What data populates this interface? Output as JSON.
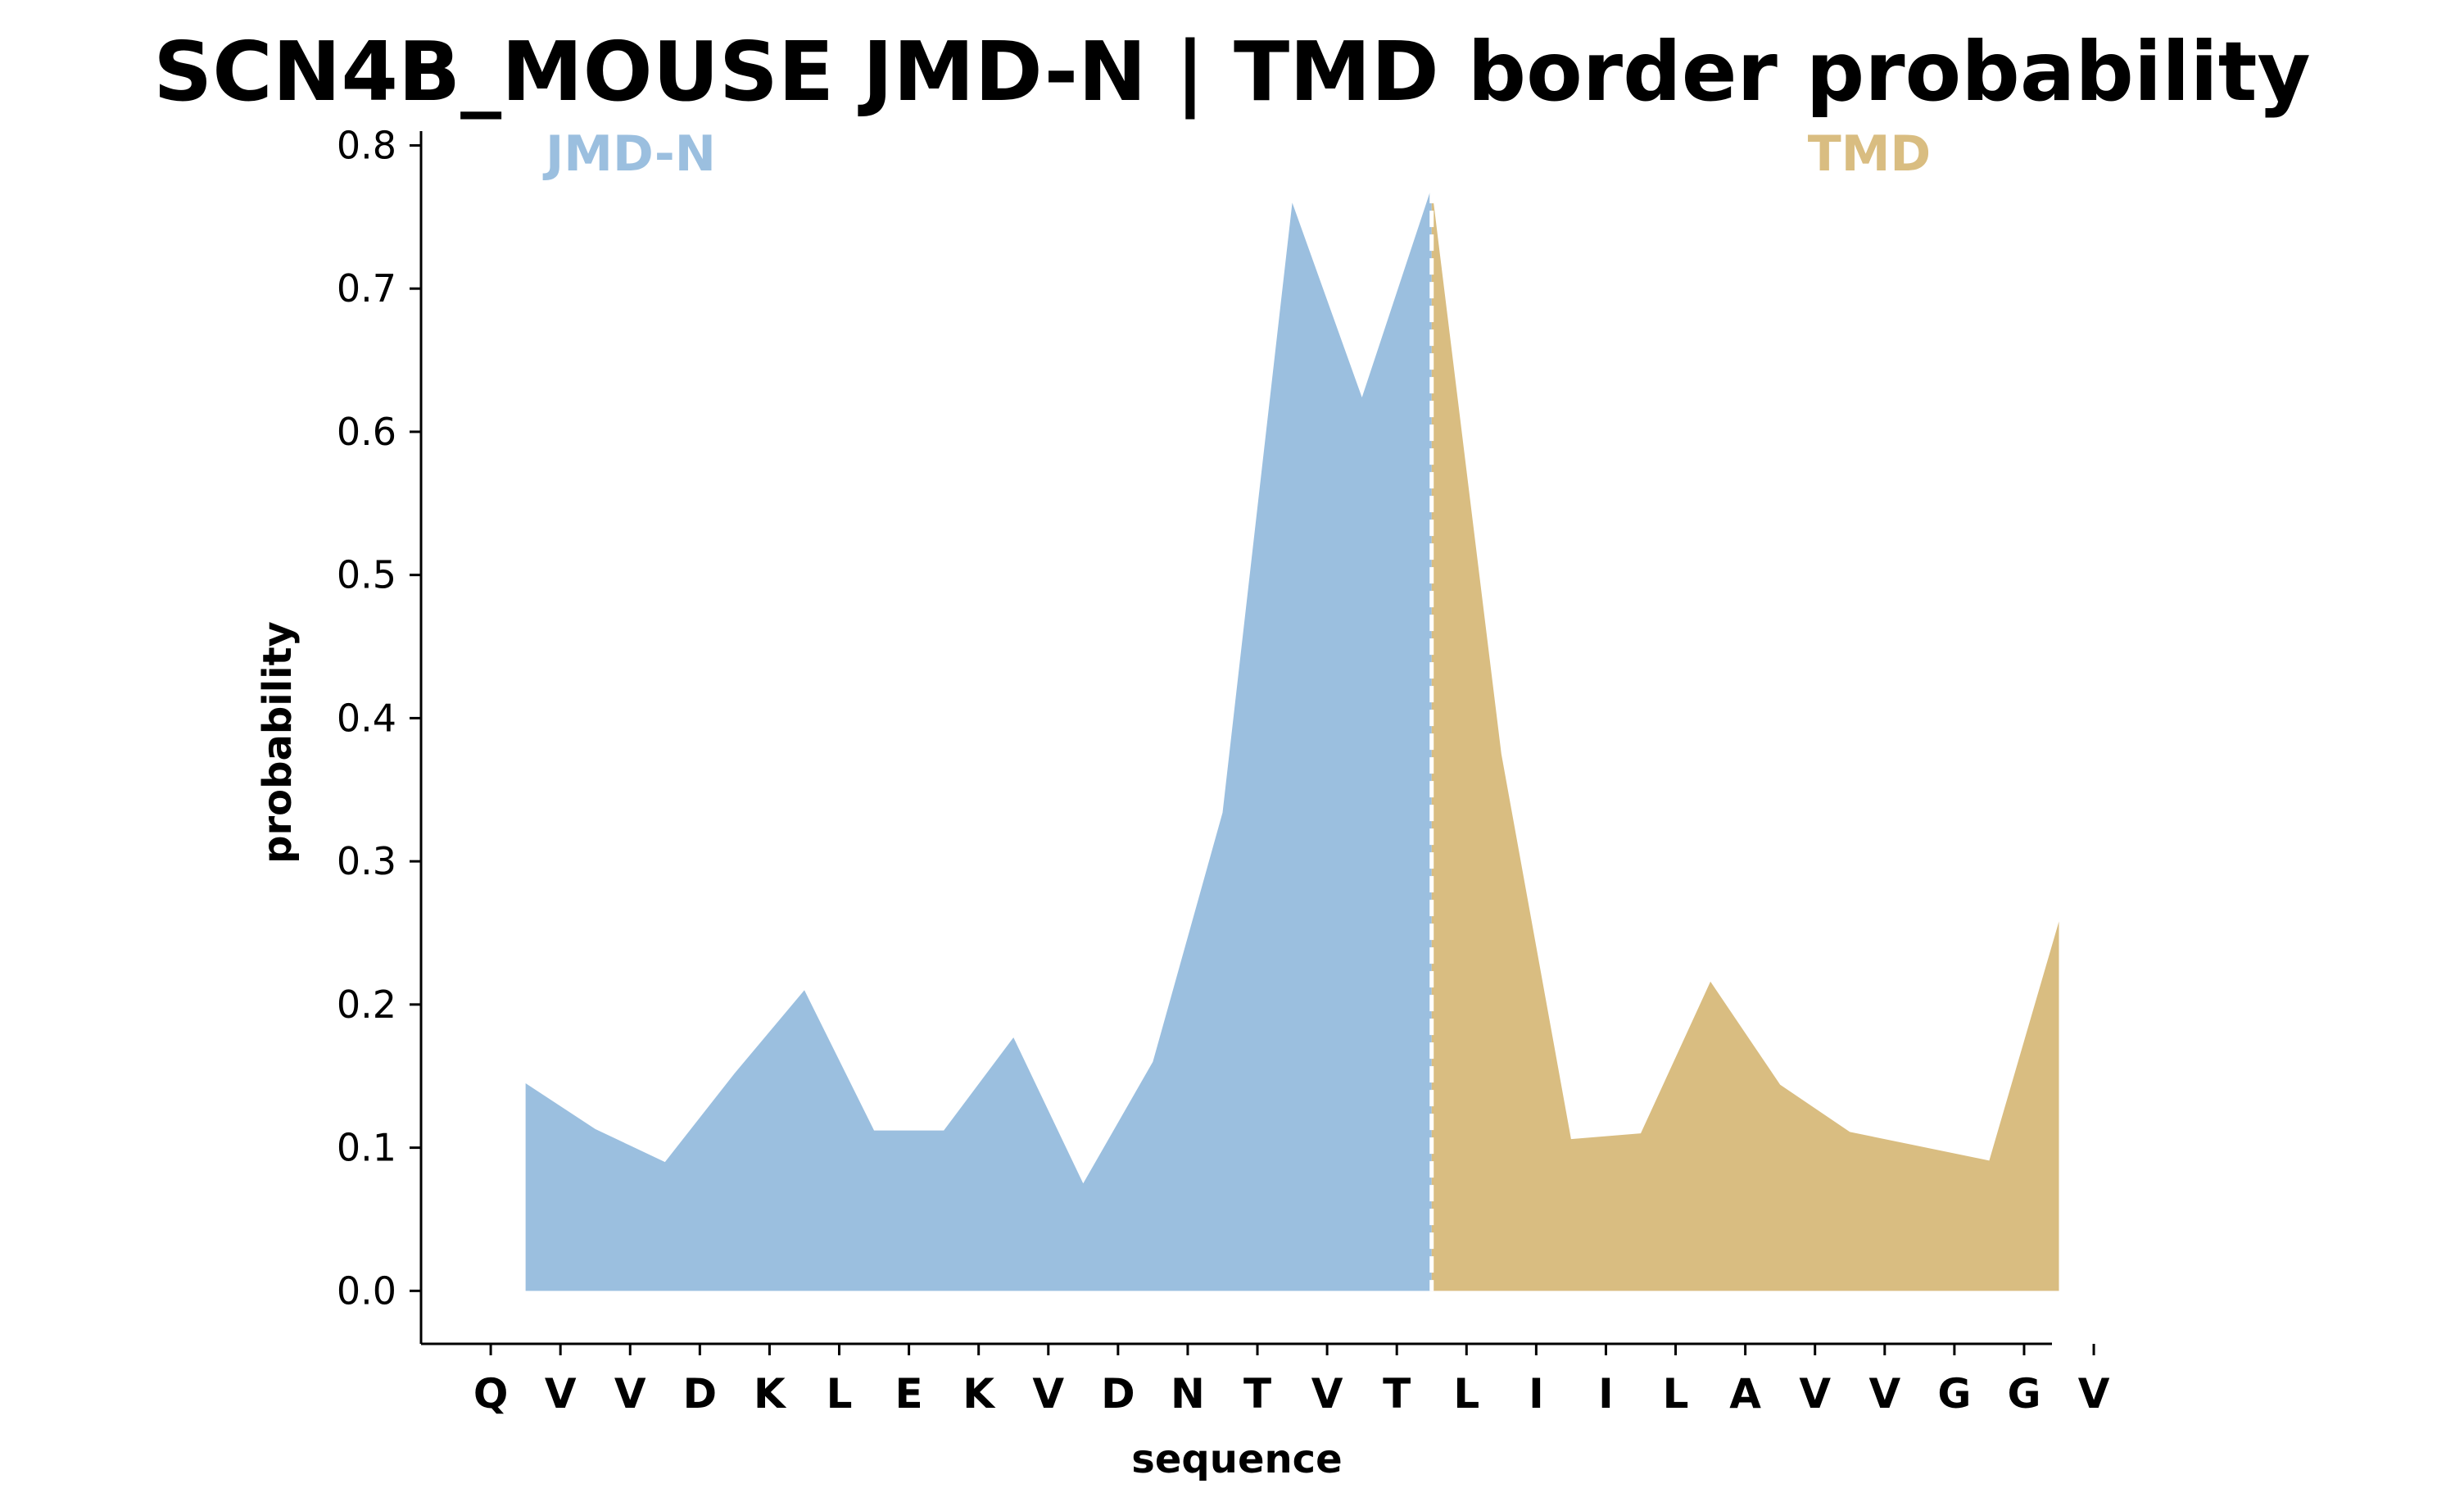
{
  "chart_data": {
    "type": "area",
    "title": "SCN4B_MOUSE JMD-N | TMD border probability",
    "xlabel": "sequence",
    "ylabel": "probability",
    "ylim": [
      -0.037,
      0.81
    ],
    "yticks": [
      "0.0",
      "0.1",
      "0.2",
      "0.3",
      "0.4",
      "0.5",
      "0.6",
      "0.7",
      "0.8"
    ],
    "categories": [
      "Q",
      "V",
      "V",
      "D",
      "K",
      "L",
      "E",
      "K",
      "V",
      "D",
      "N",
      "T",
      "V",
      "T",
      "L",
      "I",
      "I",
      "L",
      "A",
      "V",
      "V",
      "G",
      "G",
      "V"
    ],
    "x": [
      1.5,
      2.5,
      3.5,
      4.5,
      5.5,
      6.5,
      7.5,
      8.5,
      9.5,
      10.5,
      11.5,
      12.5,
      13.5,
      14.5,
      15.5,
      16.5,
      17.5,
      18.5,
      19.5,
      20.5,
      21.5,
      22.5,
      23.5
    ],
    "values": [
      0.145,
      0.113,
      0.09,
      0.152,
      0.21,
      0.112,
      0.112,
      0.177,
      0.075,
      0.16,
      0.334,
      0.76,
      0.624,
      0.771,
      0.375,
      0.106,
      0.11,
      0.216,
      0.144,
      0.111,
      0.101,
      0.091,
      0.258
    ],
    "border_x": 14.5,
    "grid": false,
    "series": [
      {
        "name": "JMD-N",
        "color": "#9bbfdf"
      },
      {
        "name": "TMD",
        "color": "#d9bd81"
      }
    ],
    "border_line_color": "#ffffff"
  }
}
